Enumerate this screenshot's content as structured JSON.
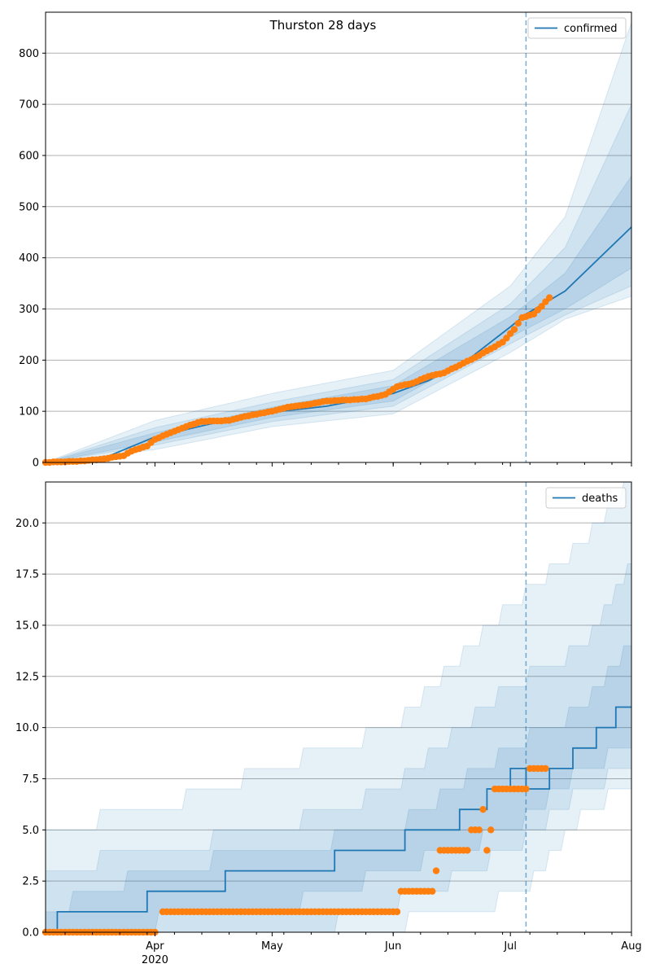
{
  "figure": {
    "title": "Thurston 28 days"
  },
  "x_axis": {
    "ticks": [
      {
        "date": "2020-04-01",
        "label": "Apr",
        "sublabel": "2020"
      },
      {
        "date": "2020-05-01",
        "label": "May",
        "sublabel": ""
      },
      {
        "date": "2020-06-01",
        "label": "Jun",
        "sublabel": ""
      },
      {
        "date": "2020-07-01",
        "label": "Jul",
        "sublabel": ""
      },
      {
        "date": "2020-08-01",
        "label": "Aug",
        "sublabel": ""
      }
    ],
    "range": [
      "2020-03-04",
      "2020-08-01"
    ],
    "vline_date": "2020-07-05"
  },
  "colors": {
    "model": "#1f77b4",
    "observed": "#ff7f0e",
    "band": "#1f77b4",
    "grid": "#b0b0b0",
    "vline": "#1f77b4"
  },
  "chart_data": [
    {
      "type": "line",
      "title": "Thurston 28 days",
      "legend": [
        "confirmed"
      ],
      "legend_position": "top-right",
      "grid": "horizontal",
      "ylim": [
        0,
        880
      ],
      "yticks": [
        0,
        100,
        200,
        300,
        400,
        500,
        600,
        700,
        800
      ],
      "ytick_labels": [
        "0",
        "100",
        "200",
        "300",
        "400",
        "500",
        "600",
        "700",
        "800"
      ],
      "series": [
        {
          "name": "confirmed",
          "kind": "model-median",
          "points": [
            [
              "2020-03-04",
              0
            ],
            [
              "2020-03-10",
              2
            ],
            [
              "2020-03-20",
              12
            ],
            [
              "2020-04-01",
              50
            ],
            [
              "2020-04-15",
              75
            ],
            [
              "2020-05-01",
              98
            ],
            [
              "2020-05-15",
              110
            ],
            [
              "2020-06-01",
              135
            ],
            [
              "2020-06-10",
              160
            ],
            [
              "2020-06-20",
              200
            ],
            [
              "2020-07-01",
              265
            ],
            [
              "2020-07-05",
              290
            ],
            [
              "2020-07-15",
              335
            ],
            [
              "2020-08-01",
              460
            ]
          ]
        },
        {
          "kind": "observed",
          "points": [
            [
              "2020-03-04",
              0
            ],
            [
              "2020-03-12",
              2
            ],
            [
              "2020-03-18",
              6
            ],
            [
              "2020-03-24",
              13
            ],
            [
              "2020-03-26",
              22
            ],
            [
              "2020-03-30",
              32
            ],
            [
              "2020-04-01",
              45
            ],
            [
              "2020-04-05",
              58
            ],
            [
              "2020-04-09",
              70
            ],
            [
              "2020-04-13",
              80
            ],
            [
              "2020-04-20",
              82
            ],
            [
              "2020-04-24",
              90
            ],
            [
              "2020-05-01",
              100
            ],
            [
              "2020-05-05",
              108
            ],
            [
              "2020-05-10",
              113
            ],
            [
              "2020-05-15",
              120
            ],
            [
              "2020-05-20",
              122
            ],
            [
              "2020-05-25",
              124
            ],
            [
              "2020-05-30",
              133
            ],
            [
              "2020-06-02",
              148
            ],
            [
              "2020-06-06",
              155
            ],
            [
              "2020-06-10",
              168
            ],
            [
              "2020-06-14",
              175
            ],
            [
              "2020-06-18",
              190
            ],
            [
              "2020-06-22",
              205
            ],
            [
              "2020-06-26",
              222
            ],
            [
              "2020-06-29",
              235
            ],
            [
              "2020-07-02",
              260
            ],
            [
              "2020-07-04",
              283
            ],
            [
              "2020-07-07",
              290
            ],
            [
              "2020-07-09",
              305
            ],
            [
              "2020-07-11",
              322
            ]
          ]
        },
        {
          "kind": "band-50",
          "lower": [
            [
              "2020-03-04",
              0
            ],
            [
              "2020-04-01",
              40
            ],
            [
              "2020-05-01",
              88
            ],
            [
              "2020-06-01",
              120
            ],
            [
              "2020-07-01",
              245
            ],
            [
              "2020-07-15",
              300
            ],
            [
              "2020-08-01",
              380
            ]
          ],
          "upper": [
            [
              "2020-03-04",
              0
            ],
            [
              "2020-04-01",
              58
            ],
            [
              "2020-05-01",
              108
            ],
            [
              "2020-06-01",
              150
            ],
            [
              "2020-07-01",
              285
            ],
            [
              "2020-07-15",
              370
            ],
            [
              "2020-08-01",
              560
            ]
          ]
        },
        {
          "kind": "band-80",
          "lower": [
            [
              "2020-03-04",
              0
            ],
            [
              "2020-04-01",
              34
            ],
            [
              "2020-05-01",
              80
            ],
            [
              "2020-06-01",
              110
            ],
            [
              "2020-07-01",
              232
            ],
            [
              "2020-07-15",
              288
            ],
            [
              "2020-08-01",
              345
            ]
          ],
          "upper": [
            [
              "2020-03-04",
              0
            ],
            [
              "2020-04-01",
              68
            ],
            [
              "2020-05-01",
              118
            ],
            [
              "2020-06-01",
              162
            ],
            [
              "2020-07-01",
              310
            ],
            [
              "2020-07-15",
              420
            ],
            [
              "2020-08-01",
              700
            ]
          ]
        },
        {
          "kind": "band-95",
          "lower": [
            [
              "2020-03-04",
              0
            ],
            [
              "2020-04-01",
              25
            ],
            [
              "2020-05-01",
              70
            ],
            [
              "2020-06-01",
              95
            ],
            [
              "2020-07-01",
              215
            ],
            [
              "2020-07-15",
              280
            ],
            [
              "2020-08-01",
              325
            ]
          ],
          "upper": [
            [
              "2020-03-04",
              0
            ],
            [
              "2020-04-01",
              82
            ],
            [
              "2020-05-01",
              135
            ],
            [
              "2020-06-01",
              180
            ],
            [
              "2020-07-01",
              345
            ],
            [
              "2020-07-15",
              480
            ],
            [
              "2020-08-01",
              860
            ]
          ]
        }
      ]
    },
    {
      "type": "line",
      "legend": [
        "deaths"
      ],
      "legend_position": "top-right",
      "grid": "horizontal",
      "ylim": [
        0,
        22
      ],
      "yticks": [
        0,
        2.5,
        5,
        7.5,
        10,
        12.5,
        15,
        17.5,
        20
      ],
      "ytick_labels": [
        "0.0",
        "2.5",
        "5.0",
        "7.5",
        "10.0",
        "12.5",
        "15.0",
        "17.5",
        "20.0"
      ],
      "series": [
        {
          "name": "deaths",
          "kind": "model-median",
          "points": [
            [
              "2020-03-04",
              0
            ],
            [
              "2020-03-07",
              0
            ],
            [
              "2020-03-07",
              1
            ],
            [
              "2020-03-30",
              1
            ],
            [
              "2020-03-30",
              2
            ],
            [
              "2020-04-19",
              2
            ],
            [
              "2020-04-19",
              3
            ],
            [
              "2020-05-17",
              3
            ],
            [
              "2020-05-17",
              4
            ],
            [
              "2020-06-04",
              4
            ],
            [
              "2020-06-04",
              5
            ],
            [
              "2020-06-18",
              5
            ],
            [
              "2020-06-18",
              6
            ],
            [
              "2020-06-25",
              6
            ],
            [
              "2020-06-25",
              7
            ],
            [
              "2020-07-01",
              7
            ],
            [
              "2020-07-01",
              8
            ],
            [
              "2020-07-05",
              8
            ],
            [
              "2020-07-05",
              7
            ],
            [
              "2020-07-11",
              7
            ],
            [
              "2020-07-11",
              8
            ],
            [
              "2020-07-17",
              8
            ],
            [
              "2020-07-17",
              9
            ],
            [
              "2020-07-23",
              9
            ],
            [
              "2020-07-23",
              10
            ],
            [
              "2020-07-28",
              10
            ],
            [
              "2020-07-28",
              11
            ],
            [
              "2020-08-01",
              11
            ]
          ]
        },
        {
          "kind": "observed",
          "segments": [
            [
              "2020-03-04",
              "2020-04-01",
              0
            ],
            [
              "2020-04-03",
              "2020-06-02",
              1
            ],
            [
              "2020-06-03",
              "2020-06-11",
              2
            ],
            [
              "2020-06-12",
              "2020-06-12",
              3
            ],
            [
              "2020-06-13",
              "2020-06-20",
              4
            ],
            [
              "2020-06-21",
              "2020-06-23",
              5
            ],
            [
              "2020-06-24",
              "2020-06-24",
              6
            ],
            [
              "2020-06-25",
              "2020-06-25",
              4
            ],
            [
              "2020-06-26",
              "2020-06-26",
              5
            ],
            [
              "2020-06-27",
              "2020-07-05",
              7
            ],
            [
              "2020-07-06",
              "2020-07-10",
              8
            ]
          ]
        },
        {
          "kind": "band-50",
          "lower": [
            [
              "2020-03-04",
              0
            ],
            [
              "2020-05-01",
              1
            ],
            [
              "2020-06-01",
              3
            ],
            [
              "2020-07-01",
              5
            ],
            [
              "2020-07-20",
              8
            ],
            [
              "2020-08-01",
              9
            ]
          ],
          "upper": [
            [
              "2020-03-04",
              1
            ],
            [
              "2020-04-01",
              3
            ],
            [
              "2020-05-01",
              4
            ],
            [
              "2020-06-01",
              5
            ],
            [
              "2020-07-01",
              9
            ],
            [
              "2020-07-20",
              11
            ],
            [
              "2020-08-01",
              14
            ]
          ]
        },
        {
          "kind": "band-80",
          "lower": [
            [
              "2020-03-04",
              0
            ],
            [
              "2020-05-10",
              0
            ],
            [
              "2020-06-10",
              2
            ],
            [
              "2020-07-01",
              4
            ],
            [
              "2020-07-20",
              7
            ],
            [
              "2020-08-01",
              8
            ]
          ],
          "upper": [
            [
              "2020-03-04",
              3
            ],
            [
              "2020-04-01",
              4
            ],
            [
              "2020-05-01",
              5
            ],
            [
              "2020-06-01",
              7
            ],
            [
              "2020-07-01",
              12
            ],
            [
              "2020-07-20",
              14
            ],
            [
              "2020-08-01",
              18
            ]
          ]
        },
        {
          "kind": "band-95",
          "lower": [
            [
              "2020-03-04",
              0
            ],
            [
              "2020-05-20",
              0
            ],
            [
              "2020-06-20",
              1
            ],
            [
              "2020-07-05",
              2
            ],
            [
              "2020-07-20",
              6
            ],
            [
              "2020-08-01",
              7
            ]
          ],
          "upper": [
            [
              "2020-03-04",
              5
            ],
            [
              "2020-04-01",
              6
            ],
            [
              "2020-05-01",
              8
            ],
            [
              "2020-06-01",
              10
            ],
            [
              "2020-07-01",
              16
            ],
            [
              "2020-07-20",
              19
            ],
            [
              "2020-08-01",
              22
            ]
          ]
        }
      ]
    }
  ]
}
